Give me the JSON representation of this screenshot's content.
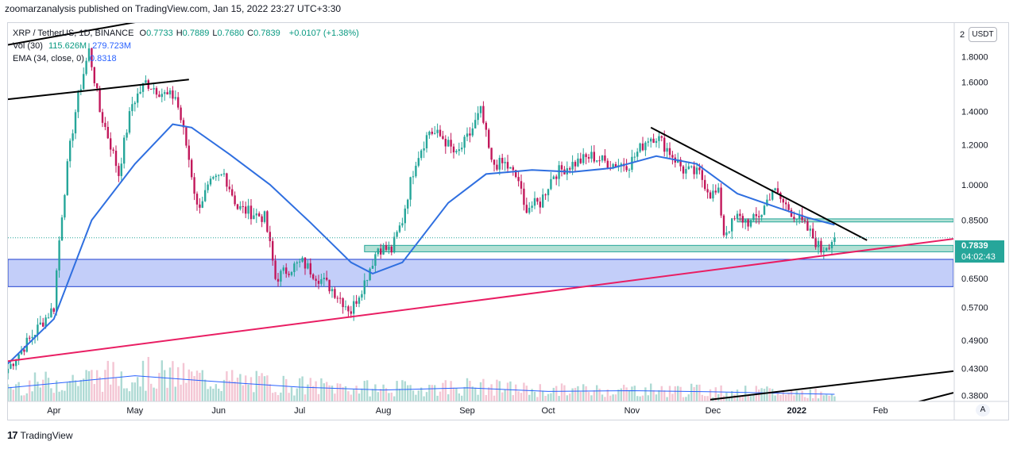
{
  "header": {
    "publisher_line": "zoomarzanalysis published on TradingView.com, Jan 15, 2022 23:27 UTC+3:30"
  },
  "legend": {
    "symbol": "XRP / TetherUS, 1D, BINANCE",
    "ohlc": [
      {
        "label": "O",
        "value": "0.7733"
      },
      {
        "label": "H",
        "value": "0.7889"
      },
      {
        "label": "L",
        "value": "0.7680"
      },
      {
        "label": "C",
        "value": "0.7839"
      }
    ],
    "change": "+0.0107 (+1.38%)",
    "vol_label": "Vol (30)",
    "vol_value1": "115.626M",
    "vol_value2": "279.723M",
    "ema_label": "EMA (34, close, 0)",
    "ema_value": "0.8318"
  },
  "price_axis": {
    "unit_button": "USDT",
    "edge_label": "2",
    "last_price": "0.7839",
    "countdown": "04:02:43",
    "auto_button": "A"
  },
  "footer": {
    "brand": "TradingView",
    "logo_icon": "tradingview-logo-icon"
  },
  "colors": {
    "up": "#26a69a",
    "down": "#c2185b",
    "ema": "#2f6fe0",
    "support_trend": "#e91e63",
    "trendline": "#000000",
    "zone_blue": "#b9c6f8",
    "zone_green": "#b2e0d4"
  },
  "chart_data": {
    "type": "candlestick",
    "scale": "log",
    "ylim": [
      0.37,
      2.1
    ],
    "y_ticks": [
      "1.8000",
      "1.6000",
      "1.4000",
      "1.2000",
      "1.0000",
      "0.8500",
      "0.6500",
      "0.5700",
      "0.4900",
      "0.4300",
      "0.3800"
    ],
    "x_ticks": [
      "Apr",
      "May",
      "Jun",
      "Jul",
      "Aug",
      "Sep",
      "Oct",
      "Nov",
      "Dec",
      "2022",
      "Feb"
    ],
    "x_range": [
      "2021-03-15",
      "2022-02-28"
    ],
    "ohlc_anchors": [
      [
        "2021-03-15",
        0.43
      ],
      [
        "2021-03-24",
        0.5
      ],
      [
        "2021-04-01",
        0.57
      ],
      [
        "2021-04-05",
        0.98
      ],
      [
        "2021-04-09",
        1.4
      ],
      [
        "2021-04-14",
        1.85
      ],
      [
        "2021-04-18",
        1.4
      ],
      [
        "2021-04-25",
        1.05
      ],
      [
        "2021-04-30",
        1.45
      ],
      [
        "2021-05-05",
        1.6
      ],
      [
        "2021-05-09",
        1.55
      ],
      [
        "2021-05-13",
        1.5
      ],
      [
        "2021-05-16",
        1.5
      ],
      [
        "2021-05-20",
        1.2
      ],
      [
        "2021-05-24",
        0.9
      ],
      [
        "2021-05-29",
        1.0
      ],
      [
        "2021-06-03",
        1.05
      ],
      [
        "2021-06-08",
        0.9
      ],
      [
        "2021-06-13",
        0.88
      ],
      [
        "2021-06-18",
        0.86
      ],
      [
        "2021-06-22",
        0.65
      ],
      [
        "2021-06-27",
        0.68
      ],
      [
        "2021-07-02",
        0.7
      ],
      [
        "2021-07-07",
        0.66
      ],
      [
        "2021-07-13",
        0.62
      ],
      [
        "2021-07-20",
        0.56
      ],
      [
        "2021-07-25",
        0.64
      ],
      [
        "2021-07-30",
        0.75
      ],
      [
        "2021-08-04",
        0.74
      ],
      [
        "2021-08-08",
        0.85
      ],
      [
        "2021-08-13",
        1.12
      ],
      [
        "2021-08-18",
        1.28
      ],
      [
        "2021-08-23",
        1.24
      ],
      [
        "2021-08-28",
        1.14
      ],
      [
        "2021-09-02",
        1.26
      ],
      [
        "2021-09-06",
        1.4
      ],
      [
        "2021-09-10",
        1.1
      ],
      [
        "2021-09-15",
        1.1
      ],
      [
        "2021-09-20",
        1.02
      ],
      [
        "2021-09-22",
        0.9
      ],
      [
        "2021-09-28",
        0.92
      ],
      [
        "2021-10-03",
        1.05
      ],
      [
        "2021-10-10",
        1.1
      ],
      [
        "2021-10-17",
        1.14
      ],
      [
        "2021-10-24",
        1.1
      ],
      [
        "2021-10-31",
        1.1
      ],
      [
        "2021-11-07",
        1.24
      ],
      [
        "2021-11-10",
        1.25
      ],
      [
        "2021-11-14",
        1.18
      ],
      [
        "2021-11-20",
        1.07
      ],
      [
        "2021-11-26",
        1.05
      ],
      [
        "2021-11-30",
        0.96
      ],
      [
        "2021-12-03",
        0.96
      ],
      [
        "2021-12-05",
        0.8
      ],
      [
        "2021-12-10",
        0.86
      ],
      [
        "2021-12-15",
        0.84
      ],
      [
        "2021-12-19",
        0.88
      ],
      [
        "2021-12-23",
        0.98
      ],
      [
        "2021-12-27",
        0.92
      ],
      [
        "2022-01-02",
        0.85
      ],
      [
        "2022-01-06",
        0.8
      ],
      [
        "2022-01-10",
        0.74
      ],
      [
        "2022-01-12",
        0.76
      ],
      [
        "2022-01-15",
        0.7839
      ]
    ],
    "ema_34": [
      [
        "2021-03-15",
        0.44
      ],
      [
        "2021-04-01",
        0.54
      ],
      [
        "2021-04-15",
        0.85
      ],
      [
        "2021-05-01",
        1.1
      ],
      [
        "2021-05-15",
        1.32
      ],
      [
        "2021-05-22",
        1.3
      ],
      [
        "2021-06-05",
        1.15
      ],
      [
        "2021-06-20",
        1.0
      ],
      [
        "2021-07-05",
        0.84
      ],
      [
        "2021-07-20",
        0.7
      ],
      [
        "2021-07-28",
        0.665
      ],
      [
        "2021-08-08",
        0.7
      ],
      [
        "2021-08-25",
        0.92
      ],
      [
        "2021-09-08",
        1.05
      ],
      [
        "2021-09-25",
        1.07
      ],
      [
        "2021-10-10",
        1.06
      ],
      [
        "2021-10-25",
        1.08
      ],
      [
        "2021-11-10",
        1.14
      ],
      [
        "2021-11-25",
        1.1
      ],
      [
        "2021-12-10",
        0.96
      ],
      [
        "2021-12-25",
        0.9
      ],
      [
        "2022-01-05",
        0.86
      ],
      [
        "2022-01-15",
        0.8318
      ]
    ],
    "volume_ma_30": [
      [
        "2021-03-15",
        0.38
      ],
      [
        "2021-05-01",
        0.72
      ],
      [
        "2021-06-01",
        0.55
      ],
      [
        "2021-07-01",
        0.4
      ],
      [
        "2021-08-01",
        0.32
      ],
      [
        "2021-09-01",
        0.38
      ],
      [
        "2021-10-01",
        0.28
      ],
      [
        "2021-11-01",
        0.3
      ],
      [
        "2021-12-01",
        0.27
      ],
      [
        "2022-01-01",
        0.22
      ],
      [
        "2022-01-15",
        0.2
      ]
    ],
    "drawings": {
      "channel_top_1": [
        [
          "2021-03-15",
          1.9
        ],
        [
          "2022-02-28",
          4.1
        ]
      ],
      "channel_top_2": [
        [
          "2021-03-15",
          1.48
        ],
        [
          "2021-05-21",
          1.62
        ]
      ],
      "channel_bottom_black_1": [
        [
          "2021-11-30",
          0.373
        ],
        [
          "2022-02-28",
          0.425
        ]
      ],
      "channel_bottom_black_2": [
        [
          "2022-01-20",
          0.34
        ],
        [
          "2022-02-28",
          0.385
        ]
      ],
      "support_trend": [
        [
          "2021-03-15",
          0.445
        ],
        [
          "2022-02-28",
          0.78
        ]
      ],
      "resistance_trend": [
        [
          "2021-11-08",
          1.3
        ],
        [
          "2022-01-27",
          0.775
        ]
      ],
      "zone_blue": [
        0.6265,
        0.71
      ],
      "zone_green": [
        0.735,
        0.757
      ],
      "zone_green_thin": [
        0.843,
        0.855
      ]
    }
  }
}
